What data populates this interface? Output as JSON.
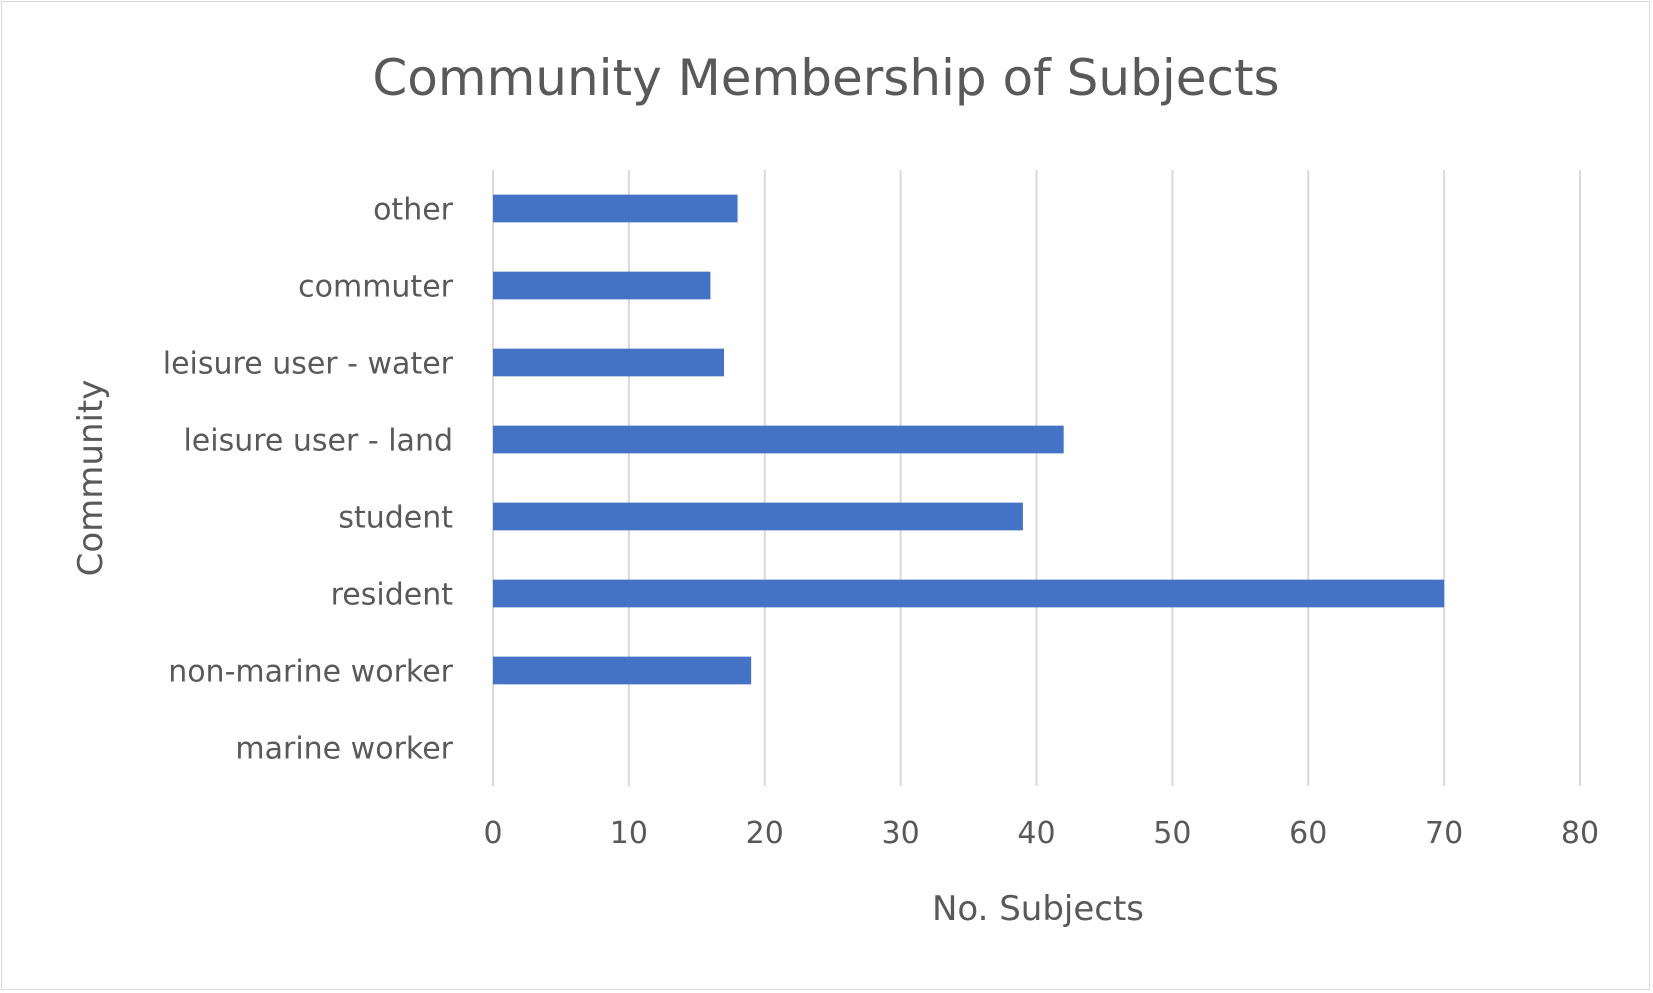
{
  "chart_data": {
    "type": "bar",
    "orientation": "horizontal",
    "title": "Community Membership of Subjects",
    "xlabel": "No. Subjects",
    "ylabel": "Community",
    "categories": [
      "marine worker",
      "non-marine worker",
      "resident",
      "student",
      "leisure user - land",
      "leisure user - water",
      "commuter",
      "other"
    ],
    "values": [
      0,
      19,
      70,
      39,
      42,
      17,
      16,
      18
    ],
    "xlim": [
      0,
      80
    ],
    "xticks": [
      "0",
      "10",
      "20",
      "30",
      "40",
      "50",
      "60",
      "70",
      "80"
    ],
    "grid": "vertical",
    "legend": "none",
    "colors": {
      "bar": "#4472c4",
      "grid": "#d9d9d9",
      "text": "#595959",
      "border": "#d9d9d9"
    }
  }
}
